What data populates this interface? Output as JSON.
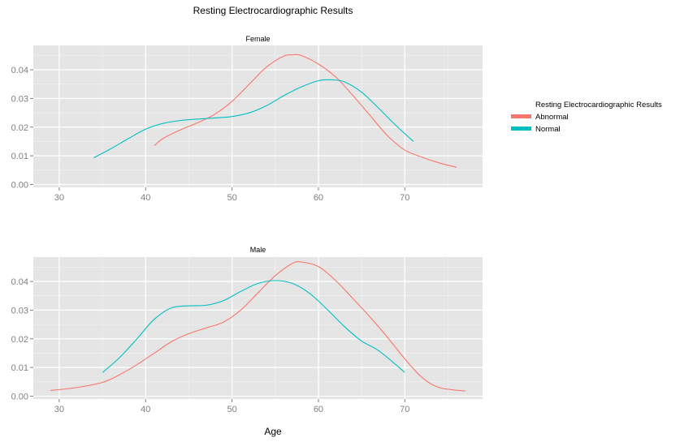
{
  "chart_data": {
    "type": "line",
    "title": "Resting Electrocardiographic Results",
    "xlabel": "Age",
    "ylabel": "",
    "xlim": [
      27,
      79
    ],
    "ylim": [
      -0.001,
      0.0485
    ],
    "x_ticks": [
      30,
      40,
      50,
      60,
      70
    ],
    "y_ticks": [
      0.0,
      0.01,
      0.02,
      0.03,
      0.04
    ],
    "y_tick_labels": [
      "0.00",
      "0.01",
      "0.02",
      "0.03",
      "0.04"
    ],
    "grid": true,
    "legend": {
      "title": "Resting Electrocardiographic Results",
      "placement": "right",
      "entries": [
        {
          "name": "Abnormal",
          "color": "#F8766D"
        },
        {
          "name": "Normal",
          "color": "#00BFC4"
        }
      ]
    },
    "panels": [
      {
        "label": "Female",
        "series": [
          {
            "name": "Abnormal",
            "color": "#F8766D",
            "x": [
              41,
              42,
              44,
              46,
              48,
              50,
              52,
              54,
              56,
              57,
              58,
              60,
              62,
              64,
              66,
              68,
              70,
              72,
              74,
              76
            ],
            "y": [
              0.0135,
              0.016,
              0.019,
              0.0215,
              0.0245,
              0.029,
              0.035,
              0.041,
              0.0448,
              0.0452,
              0.045,
              0.042,
              0.0375,
              0.031,
              0.024,
              0.017,
              0.012,
              0.0095,
              0.0075,
              0.006
            ]
          },
          {
            "name": "Normal",
            "color": "#00BFC4",
            "x": [
              34,
              36,
              38,
              40,
              42,
              44,
              46,
              48,
              50,
              52,
              54,
              56,
              58,
              60,
              61.5,
              63,
              65,
              67,
              69,
              71
            ],
            "y": [
              0.0093,
              0.0125,
              0.016,
              0.0193,
              0.0213,
              0.0223,
              0.0228,
              0.0232,
              0.0237,
              0.025,
              0.0275,
              0.031,
              0.034,
              0.0362,
              0.0365,
              0.0358,
              0.0322,
              0.0265,
              0.0205,
              0.015
            ]
          }
        ]
      },
      {
        "label": "Male",
        "series": [
          {
            "name": "Abnormal",
            "color": "#F8766D",
            "x": [
              29,
              32,
              35,
              37,
              39,
              41,
              43,
              45,
              47,
              49,
              51,
              53,
              55,
              57,
              58,
              60,
              62,
              64,
              66,
              68,
              70,
              72,
              74,
              77
            ],
            "y": [
              0.002,
              0.003,
              0.0048,
              0.0075,
              0.011,
              0.015,
              0.019,
              0.0218,
              0.0238,
              0.0258,
              0.03,
              0.036,
              0.042,
              0.0463,
              0.0468,
              0.0452,
              0.0403,
              0.034,
              0.0275,
              0.0205,
              0.013,
              0.0065,
              0.003,
              0.0018
            ]
          },
          {
            "name": "Normal",
            "color": "#00BFC4",
            "x": [
              35,
              37,
              39,
              41,
              43,
              45,
              47,
              49,
              51,
              53,
              55,
              57,
              59,
              61,
              63,
              65,
              67,
              70
            ],
            "y": [
              0.0082,
              0.0135,
              0.02,
              0.0268,
              0.0308,
              0.0315,
              0.0317,
              0.0333,
              0.0365,
              0.0393,
              0.0403,
              0.0393,
              0.0358,
              0.0303,
              0.0243,
              0.0192,
              0.0158,
              0.0083
            ]
          }
        ]
      }
    ]
  }
}
